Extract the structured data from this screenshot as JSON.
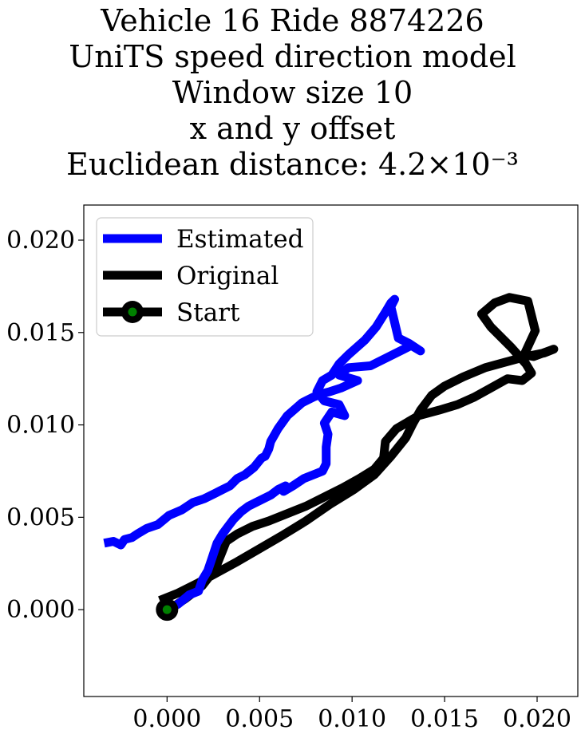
{
  "title_lines": [
    "Vehicle 16 Ride 8874226",
    "UniTS speed direction model",
    "Window size 10",
    "x and y offset",
    "Euclidean distance: 4.2×10⁻³"
  ],
  "chart_data": {
    "type": "line",
    "title": "Vehicle 16 Ride 8874226 / UniTS speed direction model / Window size 10 / x and y offset / Euclidean distance: 4.2×10⁻³",
    "xlabel": "",
    "ylabel": "",
    "xlim": [
      -0.0045,
      0.0222
    ],
    "ylim": [
      -0.0047,
      0.0219
    ],
    "xticks": [
      0.0,
      0.005,
      0.01,
      0.015,
      0.02
    ],
    "yticks": [
      0.0,
      0.005,
      0.01,
      0.015,
      0.02
    ],
    "xtick_labels": [
      "0.000",
      "0.005",
      "0.010",
      "0.015",
      "0.020"
    ],
    "ytick_labels": [
      "0.000",
      "0.005",
      "0.010",
      "0.015",
      "0.020"
    ],
    "grid": false,
    "legend_position": "top-left",
    "series": [
      {
        "name": "Estimated",
        "color": "#0000ff",
        "x": [
          0.0,
          0.0006,
          0.0012,
          0.0017,
          0.0019,
          0.0022,
          0.0024,
          0.0027,
          0.003,
          0.0033,
          0.0036,
          0.004,
          0.0044,
          0.0048,
          0.0052,
          0.0056,
          0.006,
          0.0064,
          0.0063,
          0.0068,
          0.0074,
          0.0079,
          0.0084,
          0.0086,
          0.0086,
          0.0087,
          0.0085,
          0.0089,
          0.0096,
          0.0093,
          0.0085,
          0.0081,
          0.0084,
          0.0089,
          0.0093,
          0.0098,
          0.0107,
          0.0113,
          0.0118,
          0.0121,
          0.0123,
          0.0121,
          0.0125,
          0.0131,
          0.0137,
          0.0132,
          0.0122,
          0.011,
          0.0098,
          0.0093,
          0.0103,
          0.0094,
          0.0088,
          0.0084,
          0.0079,
          0.0073,
          0.0065,
          0.006,
          0.0056,
          0.0055,
          0.0053,
          0.0051,
          0.0047,
          0.0042,
          0.0038,
          0.0034,
          0.003,
          0.0026,
          0.002,
          0.0014,
          0.0008,
          0.0001,
          -0.0005,
          -0.0011,
          -0.0016,
          -0.0019,
          -0.0023,
          -0.0025,
          -0.0029,
          -0.0034
        ],
        "y": [
          0.0,
          0.0003,
          0.0008,
          0.001,
          0.0016,
          0.0021,
          0.0027,
          0.0036,
          0.0041,
          0.0045,
          0.0049,
          0.0053,
          0.0056,
          0.0058,
          0.006,
          0.0062,
          0.0065,
          0.0067,
          0.0064,
          0.0067,
          0.0071,
          0.0073,
          0.0075,
          0.0079,
          0.0088,
          0.0095,
          0.0101,
          0.0107,
          0.0105,
          0.0111,
          0.0113,
          0.0118,
          0.0124,
          0.0127,
          0.0133,
          0.0138,
          0.0146,
          0.0153,
          0.0161,
          0.0166,
          0.0168,
          0.0164,
          0.0147,
          0.0144,
          0.014,
          0.0143,
          0.0138,
          0.0132,
          0.0131,
          0.0127,
          0.0124,
          0.012,
          0.0118,
          0.0117,
          0.0115,
          0.0112,
          0.0105,
          0.0098,
          0.0091,
          0.0087,
          0.0083,
          0.0082,
          0.0077,
          0.0073,
          0.0071,
          0.0067,
          0.0065,
          0.0063,
          0.006,
          0.0058,
          0.0054,
          0.0051,
          0.0046,
          0.0044,
          0.0041,
          0.0039,
          0.0038,
          0.0035,
          0.0037,
          0.0036
        ]
      },
      {
        "name": "Original",
        "color": "#000000",
        "x": [
          -0.0004,
          0.0006,
          0.0016,
          0.0027,
          0.0038,
          0.005,
          0.0062,
          0.0075,
          0.0088,
          0.0101,
          0.0112,
          0.0121,
          0.0129,
          0.0133,
          0.0137,
          0.0143,
          0.015,
          0.016,
          0.0172,
          0.0183,
          0.0194,
          0.0204,
          0.0209,
          0.0198,
          0.0193,
          0.0199,
          0.0195,
          0.0185,
          0.0177,
          0.017,
          0.0175,
          0.0186,
          0.0194,
          0.0197,
          0.0192,
          0.0184,
          0.0175,
          0.0166,
          0.0157,
          0.0147,
          0.0136,
          0.0124,
          0.0118,
          0.0117,
          0.0112,
          0.0104,
          0.0095,
          0.0085,
          0.0075,
          0.0065,
          0.0055,
          0.0046,
          0.0038,
          0.0032,
          0.003,
          0.0026,
          0.0019,
          0.001,
          0.0001
        ],
        "y": [
          0.0005,
          0.0009,
          0.0014,
          0.002,
          0.0026,
          0.0033,
          0.004,
          0.0048,
          0.0057,
          0.0065,
          0.0073,
          0.0083,
          0.0093,
          0.0101,
          0.0108,
          0.0116,
          0.0121,
          0.0126,
          0.0131,
          0.0134,
          0.0137,
          0.0139,
          0.0141,
          0.0137,
          0.0138,
          0.0151,
          0.0167,
          0.0169,
          0.0166,
          0.016,
          0.0153,
          0.0142,
          0.0133,
          0.0128,
          0.0124,
          0.0125,
          0.012,
          0.0115,
          0.0111,
          0.0108,
          0.0105,
          0.0098,
          0.0091,
          0.0082,
          0.0076,
          0.0071,
          0.0066,
          0.0061,
          0.0056,
          0.0052,
          0.0048,
          0.0045,
          0.0041,
          0.0037,
          0.0032,
          0.0022,
          0.0013,
          0.0006,
          0.0
        ]
      }
    ],
    "start_marker": {
      "name": "Start",
      "x": 0.0,
      "y": 0.0,
      "face_color": "#008000",
      "edge_color": "#000000"
    }
  }
}
